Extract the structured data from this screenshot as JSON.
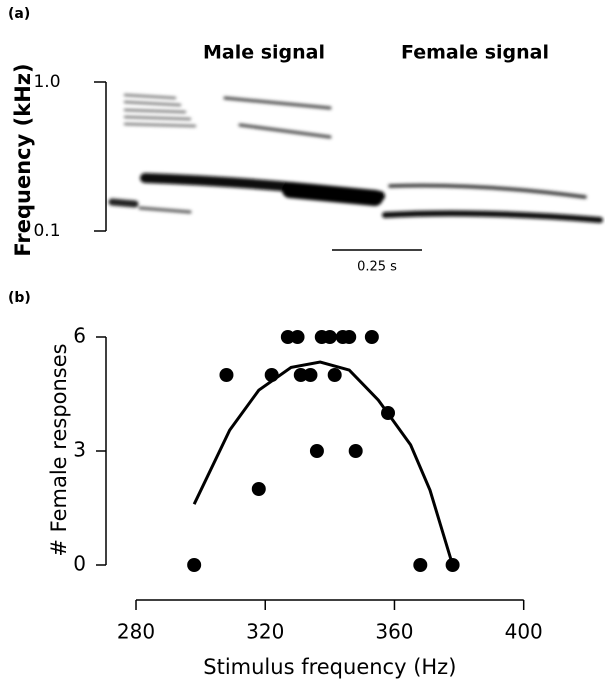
{
  "chart_data": [
    {
      "type": "spectrogram",
      "panel_label": "(a)",
      "y_label": "Frequency (kHz)",
      "annotations": [
        "Male signal",
        "Female signal"
      ],
      "scale_bar_label": "0.25 s",
      "log_scale": true,
      "ylim": [
        0.1,
        1
      ],
      "yticks": [
        {
          "value": 1,
          "label": "1.0"
        },
        0.1
      ]
    },
    {
      "type": "scatter",
      "panel_label": "(b)",
      "x_label": "Stimulus frequency (Hz)",
      "y_label": "# Female responses",
      "x": [
        298,
        308,
        318,
        322,
        327,
        330,
        331,
        334,
        336,
        337.5,
        340,
        341.5,
        344,
        346,
        348,
        353,
        358,
        368,
        378
      ],
      "values": [
        0,
        5,
        2,
        5,
        6,
        6,
        5,
        5,
        3,
        6,
        6,
        5,
        6,
        6,
        3,
        6,
        4,
        0,
        0
      ],
      "color": "#000000",
      "fit": {
        "x": [
          298,
          309,
          318,
          328,
          337,
          346,
          355,
          365,
          371,
          378
        ],
        "values": [
          1.6,
          3.55,
          4.6,
          5.2,
          5.34,
          5.13,
          4.34,
          3.16,
          1.97,
          0
        ],
        "color": "#000000"
      },
      "xlim": [
        270,
        410
      ],
      "ylim": [
        -0.5,
        6.5
      ],
      "xticks": [
        280,
        320,
        360,
        400
      ],
      "yticks": [
        0,
        3,
        6
      ]
    }
  ]
}
